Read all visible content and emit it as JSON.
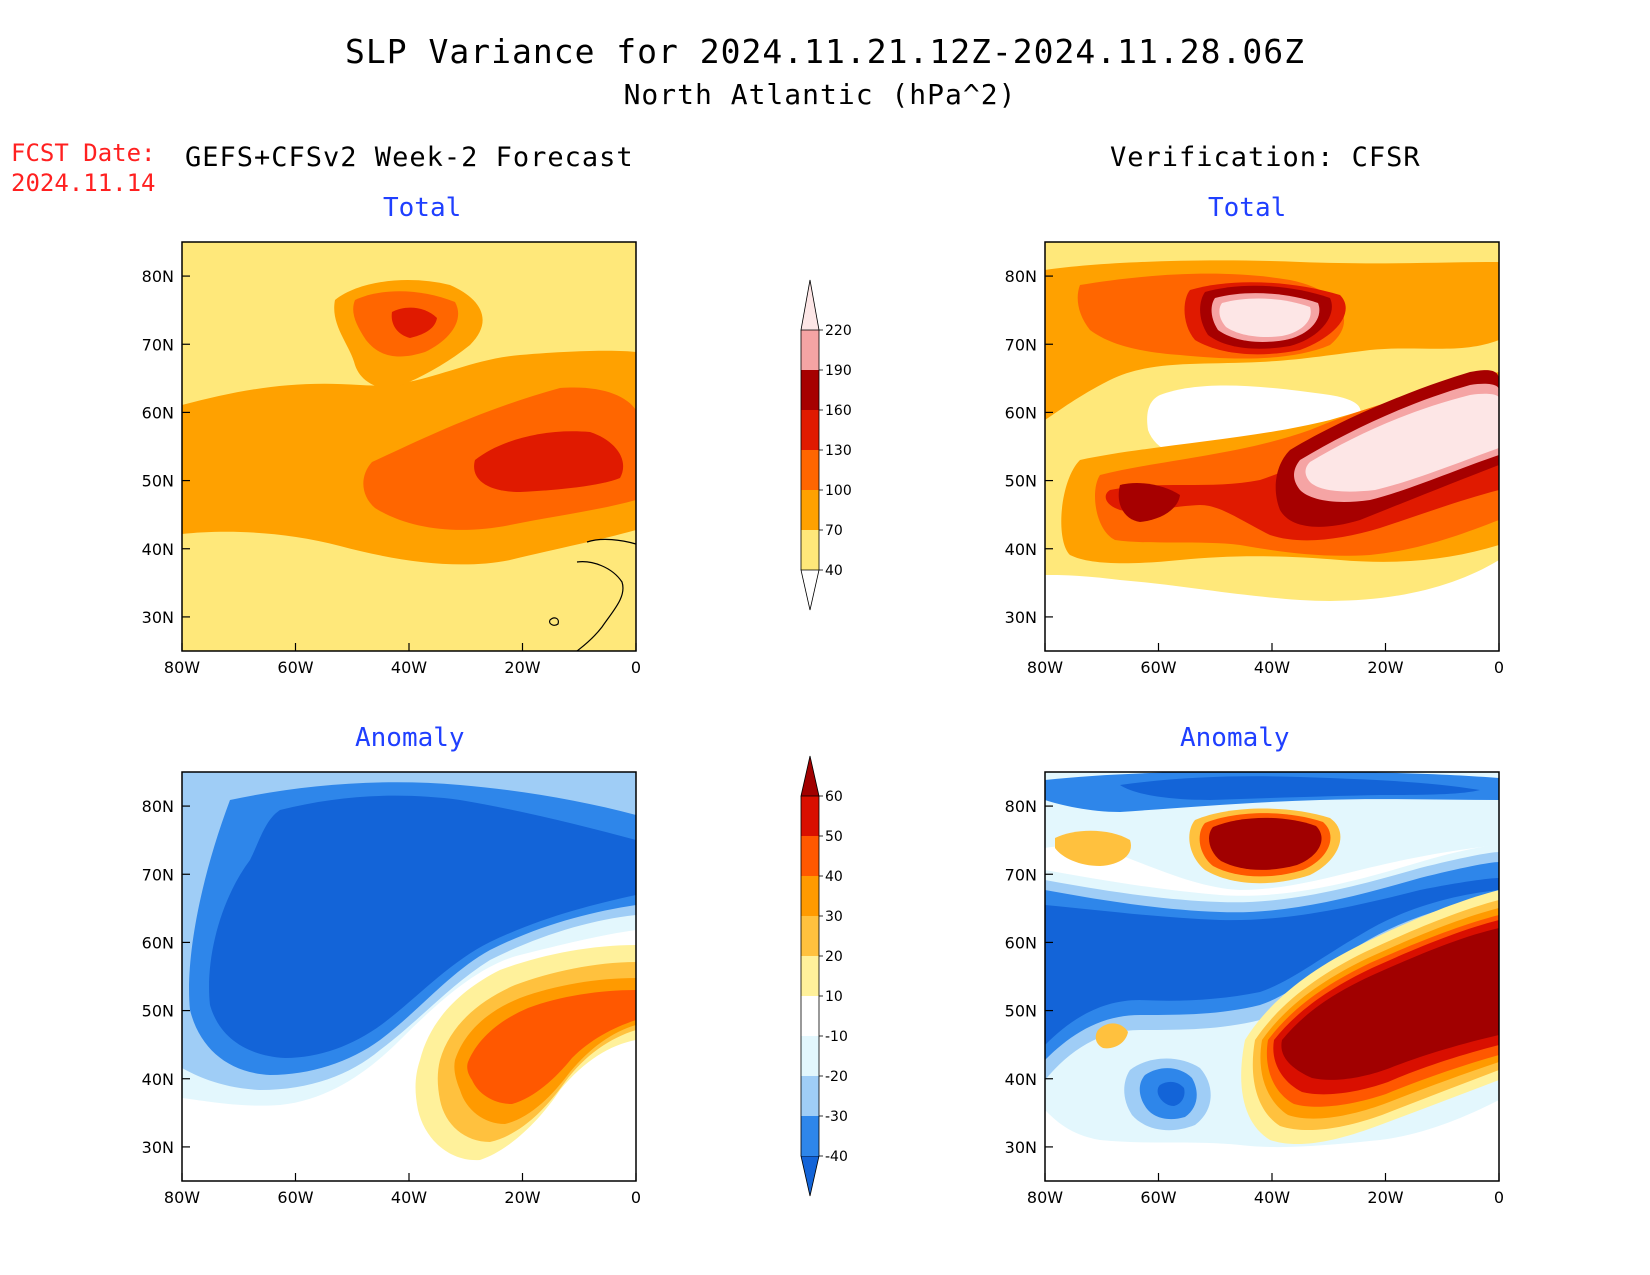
{
  "title": {
    "line1": "SLP Variance for 2024.11.21.12Z-2024.11.28.06Z",
    "line2": "North Atlantic (hPa^2)"
  },
  "fcst": {
    "label": "FCST Date:",
    "date": "2024.11.14"
  },
  "columns": {
    "left": "GEFS+CFSv2 Week-2 Forecast",
    "right": "Verification: CFSR"
  },
  "panel_titles": {
    "total": "Total",
    "anomaly": "Anomaly"
  },
  "axes": {
    "lon_labels": [
      "80W",
      "60W",
      "40W",
      "20W",
      "0"
    ],
    "lat_labels": [
      "80N",
      "70N",
      "60N",
      "50N",
      "40N",
      "30N"
    ]
  },
  "colorbars": {
    "total": {
      "levels": [
        "40",
        "70",
        "100",
        "130",
        "160",
        "190",
        "220"
      ],
      "colors": [
        "#ffe87a",
        "#ffa100",
        "#ff6600",
        "#e01a00",
        "#a60000",
        "#f5a4a4",
        "#fde6e6"
      ]
    },
    "anomaly": {
      "levels": [
        "-40",
        "-30",
        "-20",
        "-10",
        "10",
        "20",
        "30",
        "40",
        "50",
        "60"
      ],
      "colors": [
        "#1364d8",
        "#2e86ea",
        "#9fcdf6",
        "#e3f7fd",
        "#ffffff",
        "#fff19b",
        "#ffc13e",
        "#ff9a00",
        "#ff5800",
        "#d90f00",
        "#a10000"
      ]
    }
  }
}
